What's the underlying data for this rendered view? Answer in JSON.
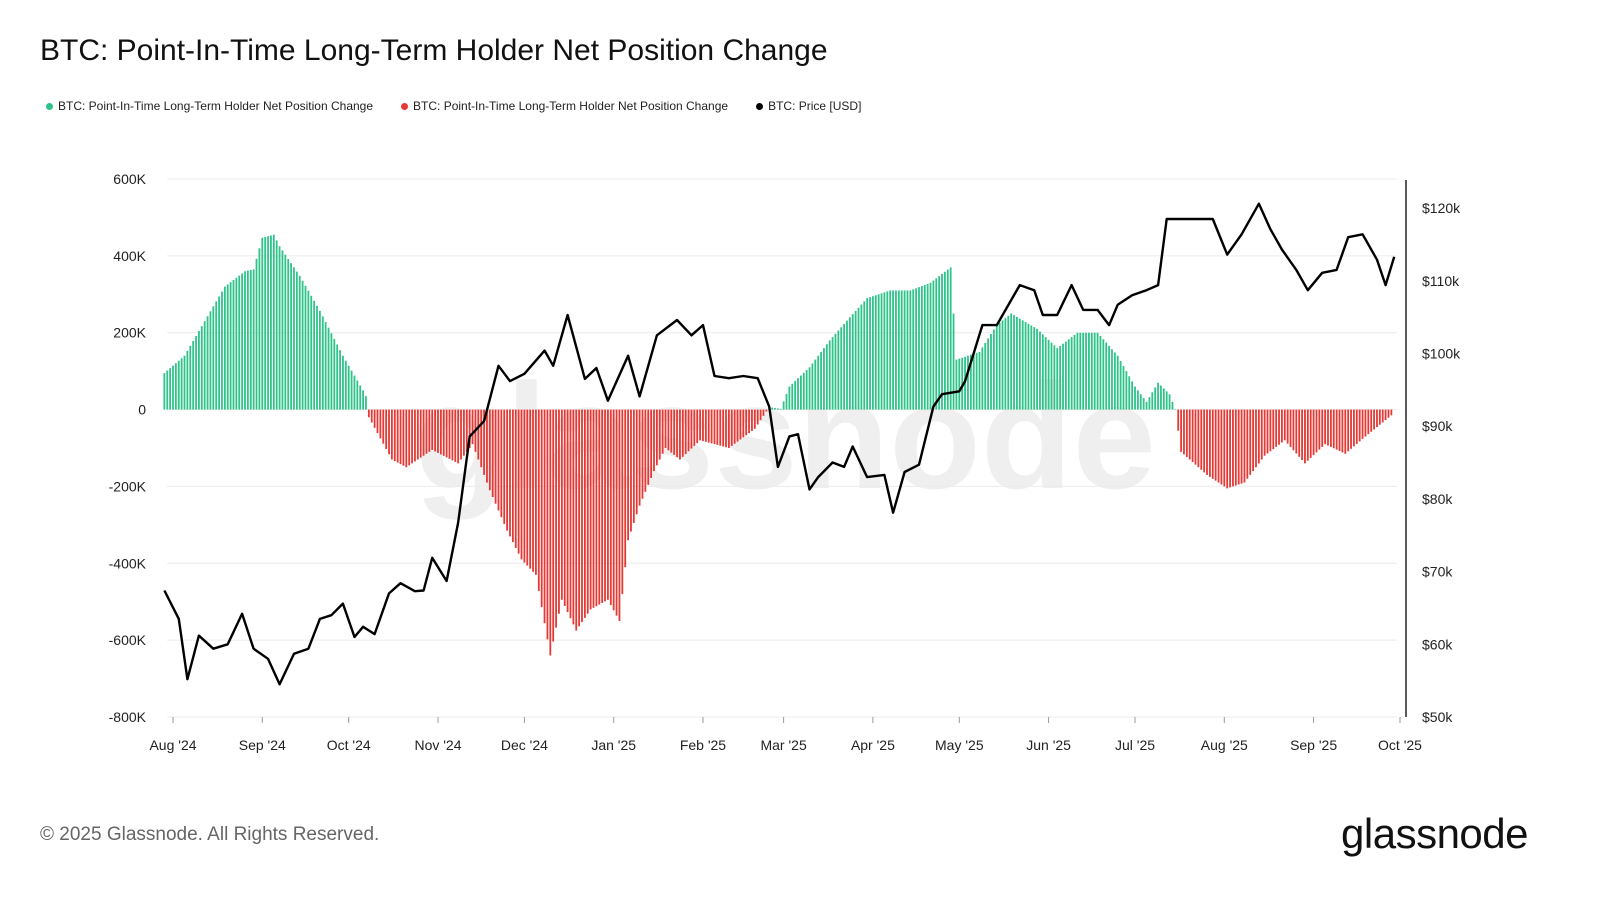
{
  "colors": {
    "positive": "#2fc38a",
    "negative": "#e53935",
    "price": "#000000"
  },
  "watermark": "glassnode",
  "footer": "© 2025 Glassnode. All Rights Reserved.",
  "logo": "glassnode",
  "chart_data": {
    "type": "bar+line",
    "title": "BTC: Point-In-Time Long-Term Holder Net Position Change",
    "legend": [
      {
        "label": "BTC: Point-In-Time Long-Term Holder Net Position Change",
        "color": "#2fc38a"
      },
      {
        "label": "BTC: Point-In-Time Long-Term Holder Net Position Change",
        "color": "#e53935"
      },
      {
        "label": "BTC: Price [USD]",
        "color": "#000000"
      }
    ],
    "legend_position": "top-left",
    "grid": true,
    "x_ticks": [
      "Aug '24",
      "Sep '24",
      "Oct '24",
      "Nov '24",
      "Dec '24",
      "Jan '25",
      "Feb '25",
      "Mar '25",
      "Apr '25",
      "May '25",
      "Jun '25",
      "Jul '25",
      "Aug '25",
      "Sep '25",
      "Oct '25"
    ],
    "x_tick_dates": [
      "2024-08-01",
      "2024-09-01",
      "2024-10-01",
      "2024-11-01",
      "2024-12-01",
      "2025-01-01",
      "2025-02-01",
      "2025-03-01",
      "2025-04-01",
      "2025-05-01",
      "2025-06-01",
      "2025-07-01",
      "2025-08-01",
      "2025-09-01",
      "2025-10-01"
    ],
    "y_left": {
      "ticks": [
        "600K",
        "400K",
        "200K",
        "0",
        "-200K",
        "-400K",
        "-600K",
        "-800K"
      ],
      "range": [
        -800000,
        600000
      ]
    },
    "y_right": {
      "ticks": [
        "$120k",
        "$110k",
        "$100k",
        "$90k",
        "$80k",
        "$70k",
        "$60k",
        "$50k"
      ],
      "range": [
        50000,
        124000
      ]
    },
    "net_position_change": [
      [
        "2024-07-29",
        95000
      ],
      [
        "2024-08-05",
        140000
      ],
      [
        "2024-08-12",
        230000
      ],
      [
        "2024-08-19",
        320000
      ],
      [
        "2024-08-26",
        360000
      ],
      [
        "2024-08-29",
        365000
      ],
      [
        "2024-09-01",
        447000
      ],
      [
        "2024-09-05",
        455000
      ],
      [
        "2024-09-07",
        425000
      ],
      [
        "2024-09-14",
        348000
      ],
      [
        "2024-09-21",
        257000
      ],
      [
        "2024-09-29",
        140000
      ],
      [
        "2024-10-06",
        50000
      ],
      [
        "2024-10-07",
        35000
      ],
      [
        "2024-10-08",
        -20000
      ],
      [
        "2024-10-16",
        -130000
      ],
      [
        "2024-10-21",
        -150000
      ],
      [
        "2024-10-30",
        -105000
      ],
      [
        "2024-11-08",
        -140000
      ],
      [
        "2024-11-13",
        -90000
      ],
      [
        "2024-11-19",
        -210000
      ],
      [
        "2024-11-25",
        -315000
      ],
      [
        "2024-11-30",
        -390000
      ],
      [
        "2024-12-05",
        -430000
      ],
      [
        "2024-12-10",
        -640000
      ],
      [
        "2024-12-14",
        -495000
      ],
      [
        "2024-12-19",
        -575000
      ],
      [
        "2024-12-24",
        -520000
      ],
      [
        "2024-12-30",
        -495000
      ],
      [
        "2025-01-03",
        -550000
      ],
      [
        "2025-01-06",
        -340000
      ],
      [
        "2025-01-10",
        -250000
      ],
      [
        "2025-01-15",
        -160000
      ],
      [
        "2025-01-19",
        -100000
      ],
      [
        "2025-01-24",
        -130000
      ],
      [
        "2025-01-31",
        -80000
      ],
      [
        "2025-02-10",
        -100000
      ],
      [
        "2025-02-19",
        -50000
      ],
      [
        "2025-02-23",
        -5000
      ],
      [
        "2025-02-25",
        5000
      ],
      [
        "2025-02-28",
        2000
      ],
      [
        "2025-03-03",
        60000
      ],
      [
        "2025-03-10",
        110000
      ],
      [
        "2025-03-17",
        180000
      ],
      [
        "2025-03-24",
        240000
      ],
      [
        "2025-03-30",
        290000
      ],
      [
        "2025-04-07",
        310000
      ],
      [
        "2025-04-14",
        310000
      ],
      [
        "2025-04-21",
        330000
      ],
      [
        "2025-04-28",
        370000
      ],
      [
        "2025-04-30",
        130000
      ],
      [
        "2025-05-08",
        150000
      ],
      [
        "2025-05-14",
        220000
      ],
      [
        "2025-05-19",
        250000
      ],
      [
        "2025-05-28",
        210000
      ],
      [
        "2025-06-04",
        160000
      ],
      [
        "2025-06-11",
        200000
      ],
      [
        "2025-06-18",
        200000
      ],
      [
        "2025-06-25",
        140000
      ],
      [
        "2025-07-01",
        60000
      ],
      [
        "2025-07-05",
        20000
      ],
      [
        "2025-07-09",
        70000
      ],
      [
        "2025-07-13",
        40000
      ],
      [
        "2025-07-15",
        0
      ],
      [
        "2025-07-17",
        -110000
      ],
      [
        "2025-07-26",
        -170000
      ],
      [
        "2025-08-02",
        -205000
      ],
      [
        "2025-08-08",
        -190000
      ],
      [
        "2025-08-15",
        -120000
      ],
      [
        "2025-08-22",
        -80000
      ],
      [
        "2025-08-29",
        -140000
      ],
      [
        "2025-09-05",
        -90000
      ],
      [
        "2025-09-12",
        -115000
      ],
      [
        "2025-09-19",
        -70000
      ],
      [
        "2025-09-28",
        -15000
      ]
    ],
    "price_usd": [
      [
        "2024-07-29",
        67400
      ],
      [
        "2024-08-03",
        63500
      ],
      [
        "2024-08-06",
        55200
      ],
      [
        "2024-08-10",
        61200
      ],
      [
        "2024-08-15",
        59400
      ],
      [
        "2024-08-20",
        60000
      ],
      [
        "2024-08-25",
        64200
      ],
      [
        "2024-08-29",
        59400
      ],
      [
        "2024-09-03",
        58000
      ],
      [
        "2024-09-07",
        54500
      ],
      [
        "2024-09-12",
        58700
      ],
      [
        "2024-09-17",
        59400
      ],
      [
        "2024-09-21",
        63500
      ],
      [
        "2024-09-25",
        64000
      ],
      [
        "2024-09-29",
        65600
      ],
      [
        "2024-10-03",
        61000
      ],
      [
        "2024-10-06",
        62400
      ],
      [
        "2024-10-10",
        61400
      ],
      [
        "2024-10-15",
        67000
      ],
      [
        "2024-10-19",
        68400
      ],
      [
        "2024-10-24",
        67300
      ],
      [
        "2024-10-27",
        67400
      ],
      [
        "2024-10-30",
        71900
      ],
      [
        "2024-11-04",
        68700
      ],
      [
        "2024-11-08",
        76700
      ],
      [
        "2024-11-12",
        88600
      ],
      [
        "2024-11-17",
        90700
      ],
      [
        "2024-11-22",
        98300
      ],
      [
        "2024-11-26",
        96200
      ],
      [
        "2024-12-01",
        97200
      ],
      [
        "2024-12-08",
        100400
      ],
      [
        "2024-12-11",
        98300
      ],
      [
        "2024-12-16",
        105300
      ],
      [
        "2024-12-22",
        96500
      ],
      [
        "2024-12-26",
        98000
      ],
      [
        "2024-12-30",
        93500
      ],
      [
        "2025-01-06",
        99700
      ],
      [
        "2025-01-10",
        94100
      ],
      [
        "2025-01-16",
        102500
      ],
      [
        "2025-01-23",
        104600
      ],
      [
        "2025-01-28",
        102500
      ],
      [
        "2025-02-01",
        103900
      ],
      [
        "2025-02-05",
        96900
      ],
      [
        "2025-02-10",
        96600
      ],
      [
        "2025-02-15",
        96900
      ],
      [
        "2025-02-20",
        96600
      ],
      [
        "2025-02-24",
        92700
      ],
      [
        "2025-02-27",
        84400
      ],
      [
        "2025-03-03",
        88600
      ],
      [
        "2025-03-06",
        88900
      ],
      [
        "2025-03-10",
        81300
      ],
      [
        "2025-03-13",
        83000
      ],
      [
        "2025-03-18",
        85000
      ],
      [
        "2025-03-22",
        84400
      ],
      [
        "2025-03-25",
        87200
      ],
      [
        "2025-03-30",
        83000
      ],
      [
        "2025-04-05",
        83300
      ],
      [
        "2025-04-08",
        78100
      ],
      [
        "2025-04-12",
        83700
      ],
      [
        "2025-04-17",
        84700
      ],
      [
        "2025-04-22",
        92700
      ],
      [
        "2025-04-25",
        94400
      ],
      [
        "2025-05-01",
        94800
      ],
      [
        "2025-05-03",
        96200
      ],
      [
        "2025-05-09",
        103900
      ],
      [
        "2025-05-14",
        103900
      ],
      [
        "2025-05-22",
        109400
      ],
      [
        "2025-05-27",
        108700
      ],
      [
        "2025-05-30",
        105300
      ],
      [
        "2025-06-04",
        105300
      ],
      [
        "2025-06-09",
        109400
      ],
      [
        "2025-06-13",
        106000
      ],
      [
        "2025-06-18",
        106000
      ],
      [
        "2025-06-22",
        103900
      ],
      [
        "2025-06-25",
        106700
      ],
      [
        "2025-06-30",
        108000
      ],
      [
        "2025-07-05",
        108700
      ],
      [
        "2025-07-09",
        109400
      ],
      [
        "2025-07-12",
        118500
      ],
      [
        "2025-07-17",
        118500
      ],
      [
        "2025-07-23",
        118500
      ],
      [
        "2025-07-28",
        118500
      ],
      [
        "2025-08-02",
        113600
      ],
      [
        "2025-08-07",
        116400
      ],
      [
        "2025-08-13",
        120600
      ],
      [
        "2025-08-17",
        117100
      ],
      [
        "2025-08-21",
        114300
      ],
      [
        "2025-08-26",
        111500
      ],
      [
        "2025-08-30",
        108700
      ],
      [
        "2025-09-04",
        111100
      ],
      [
        "2025-09-09",
        111500
      ],
      [
        "2025-09-13",
        116000
      ],
      [
        "2025-09-18",
        116400
      ],
      [
        "2025-09-23",
        112900
      ],
      [
        "2025-09-26",
        109400
      ],
      [
        "2025-09-29",
        113300
      ]
    ]
  }
}
